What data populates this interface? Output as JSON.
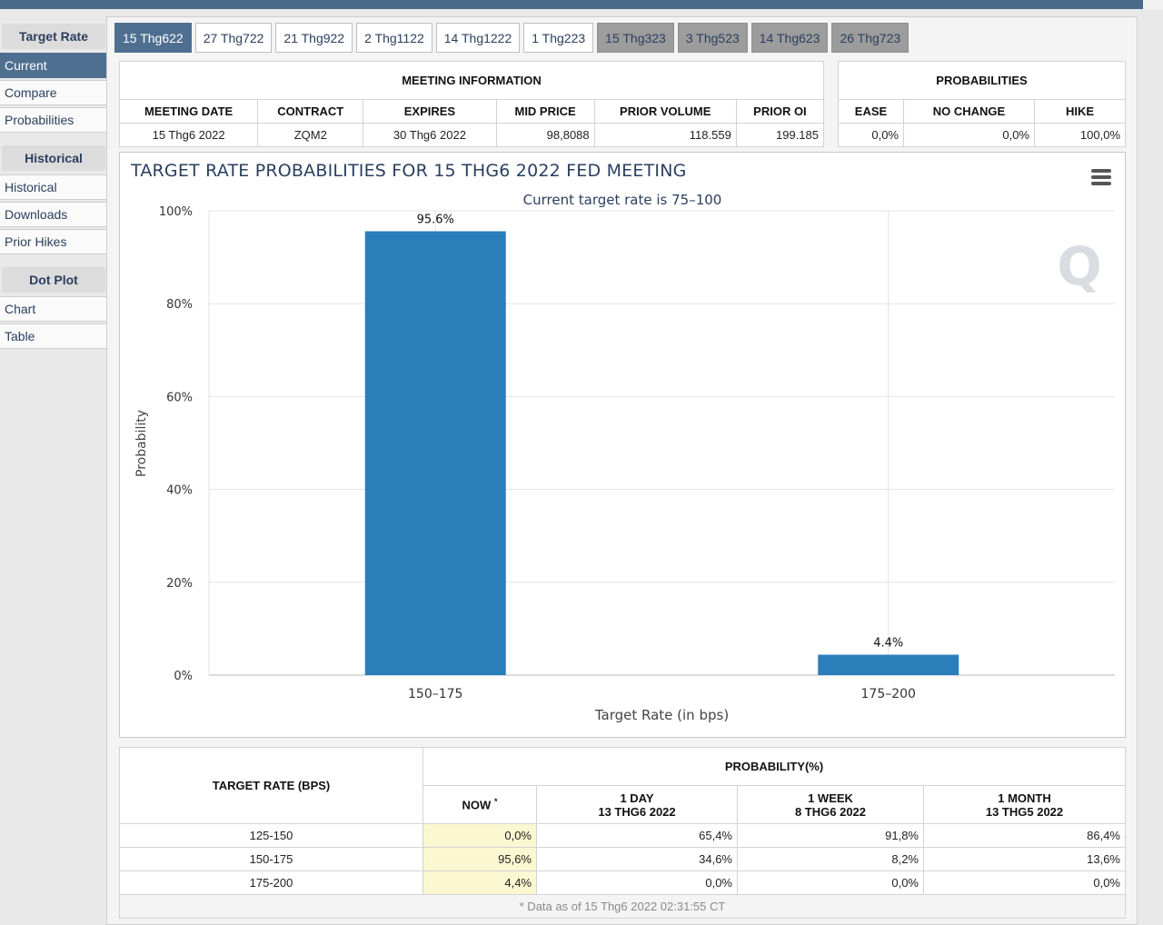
{
  "sidebar": {
    "sections": [
      {
        "heading": "Target Rate",
        "items": [
          {
            "label": "Current",
            "active": true
          },
          {
            "label": "Compare",
            "active": false
          },
          {
            "label": "Probabilities",
            "active": false
          }
        ]
      },
      {
        "heading": "Historical",
        "items": [
          {
            "label": "Historical",
            "active": false
          },
          {
            "label": "Downloads",
            "active": false
          },
          {
            "label": "Prior Hikes",
            "active": false
          }
        ]
      },
      {
        "heading": "Dot Plot",
        "items": [
          {
            "label": "Chart",
            "active": false
          },
          {
            "label": "Table",
            "active": false
          }
        ]
      }
    ]
  },
  "tabs": [
    {
      "label": "15 Thg622",
      "state": "active"
    },
    {
      "label": "27 Thg722",
      "state": "normal"
    },
    {
      "label": "21 Thg922",
      "state": "normal"
    },
    {
      "label": "2 Thg1122",
      "state": "normal"
    },
    {
      "label": "14 Thg1222",
      "state": "normal"
    },
    {
      "label": "1 Thg223",
      "state": "normal"
    },
    {
      "label": "15 Thg323",
      "state": "dark"
    },
    {
      "label": "3 Thg523",
      "state": "dark"
    },
    {
      "label": "14 Thg623",
      "state": "dark"
    },
    {
      "label": "26 Thg723",
      "state": "dark"
    }
  ],
  "meeting_info": {
    "heading": "MEETING INFORMATION",
    "columns": [
      "MEETING DATE",
      "CONTRACT",
      "EXPIRES",
      "MID PRICE",
      "PRIOR VOLUME",
      "PRIOR OI"
    ],
    "row": [
      "15 Thg6 2022",
      "ZQM2",
      "30 Thg6 2022",
      "98,8088",
      "118.559",
      "199.185"
    ]
  },
  "probabilities": {
    "heading": "PROBABILITIES",
    "columns": [
      "EASE",
      "NO CHANGE",
      "HIKE"
    ],
    "row": [
      "0,0%",
      "0,0%",
      "100,0%"
    ]
  },
  "chart_data": {
    "type": "bar",
    "title": "TARGET RATE PROBABILITIES FOR 15 THG6 2022 FED MEETING",
    "subtitle": "Current target rate is 75–100",
    "xlabel": "Target Rate (in bps)",
    "ylabel": "Probability",
    "categories": [
      "150–175",
      "175–200"
    ],
    "values": [
      95.6,
      4.4
    ],
    "data_labels": [
      "95.6%",
      "4.4%"
    ],
    "ylim": [
      0,
      100
    ],
    "yticks": [
      0,
      20,
      40,
      60,
      80,
      100
    ],
    "ytick_labels": [
      "0%",
      "20%",
      "40%",
      "60%",
      "80%",
      "100%"
    ],
    "grid": true,
    "bar_color": "#2a7fbb"
  },
  "bottom": {
    "target_rate_heading": "TARGET RATE (BPS)",
    "probability_heading": "PROBABILITY(%)",
    "now_label": "NOW",
    "now_mark": "*",
    "columns": [
      {
        "line1": "1 DAY",
        "line2": "13 THG6 2022"
      },
      {
        "line1": "1 WEEK",
        "line2": "8 THG6 2022"
      },
      {
        "line1": "1 MONTH",
        "line2": "13 THG5 2022"
      }
    ],
    "rows": [
      {
        "rate": "125-150",
        "now": "0,0%",
        "values": [
          "65,4%",
          "91,8%",
          "86,4%"
        ]
      },
      {
        "rate": "150-175",
        "now": "95,6%",
        "values": [
          "34,6%",
          "8,2%",
          "13,6%"
        ]
      },
      {
        "rate": "175-200",
        "now": "4,4%",
        "values": [
          "0,0%",
          "0,0%",
          "0,0%"
        ]
      }
    ],
    "footnote": "* Data as of 15 Thg6 2022 02:31:55 CT"
  },
  "icons": {
    "menu": "hamburger-menu-icon",
    "watermark": "q-logo-watermark"
  }
}
